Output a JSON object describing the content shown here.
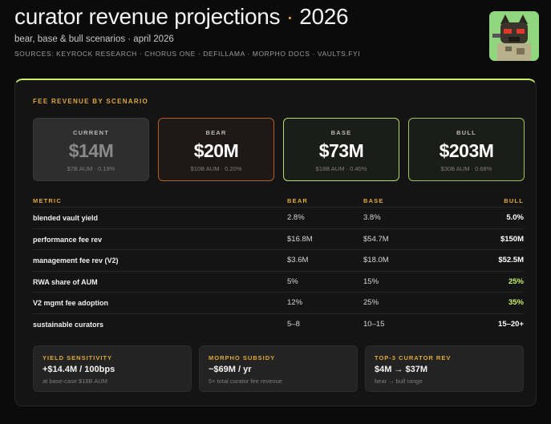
{
  "header": {
    "title_main": "curator revenue projections",
    "title_sep": "·",
    "title_year": "2026",
    "subtitle": "bear, base & bull scenarios · april 2026",
    "sources": "SOURCES: KEYROCK RESEARCH · CHORUS ONE · DEFILLAMA · MORPHO DOCS · VAULTS.FYI"
  },
  "panel": {
    "label": "FEE REVENUE BY SCENARIO",
    "cards": [
      {
        "label": "CURRENT",
        "value": "$14M",
        "sub": "$7B AUM · 0.19%"
      },
      {
        "label": "BEAR",
        "value": "$20M",
        "sub": "$10B AUM · 0.20%"
      },
      {
        "label": "BASE",
        "value": "$73M",
        "sub": "$18B AUM · 0.40%"
      },
      {
        "label": "BULL",
        "value": "$203M",
        "sub": "$30B AUM · 0.68%"
      }
    ],
    "table": {
      "headers": [
        "METRIC",
        "BEAR",
        "BASE",
        "BULL"
      ],
      "rows": [
        {
          "metric": "blended vault yield",
          "bear": "2.8%",
          "base": "3.8%",
          "bull": "5.0%"
        },
        {
          "metric": "performance fee rev",
          "bear": "$16.8M",
          "base": "$54.7M",
          "bull": "$150M"
        },
        {
          "metric": "management fee rev (V2)",
          "bear": "$3.6M",
          "base": "$18.0M",
          "bull": "$52.5M"
        },
        {
          "metric": "RWA share of AUM",
          "bear": "5%",
          "base": "15%",
          "bull": "25%"
        },
        {
          "metric": "V2 mgmt fee adoption",
          "bear": "12%",
          "base": "25%",
          "bull": "35%"
        },
        {
          "metric": "sustainable curators",
          "bear": "5–8",
          "base": "10–15",
          "bull": "15–20+"
        }
      ]
    },
    "footer": [
      {
        "label": "YIELD SENSITIVITY",
        "value": "+$14.4M / 100bps",
        "sub": "at base-case $18B AUM"
      },
      {
        "label": "MORPHO SUBSIDY",
        "value": "~$69M / yr",
        "sub": "5× total curator fee revenue"
      },
      {
        "label": "TOP-3 CURATOR REV",
        "value": "$4M → $37M",
        "sub": "bear → bull range"
      }
    ]
  },
  "colors": {
    "accent": "#e0a93a",
    "lime": "#c9f06a",
    "bear_border": "#b25f25"
  }
}
